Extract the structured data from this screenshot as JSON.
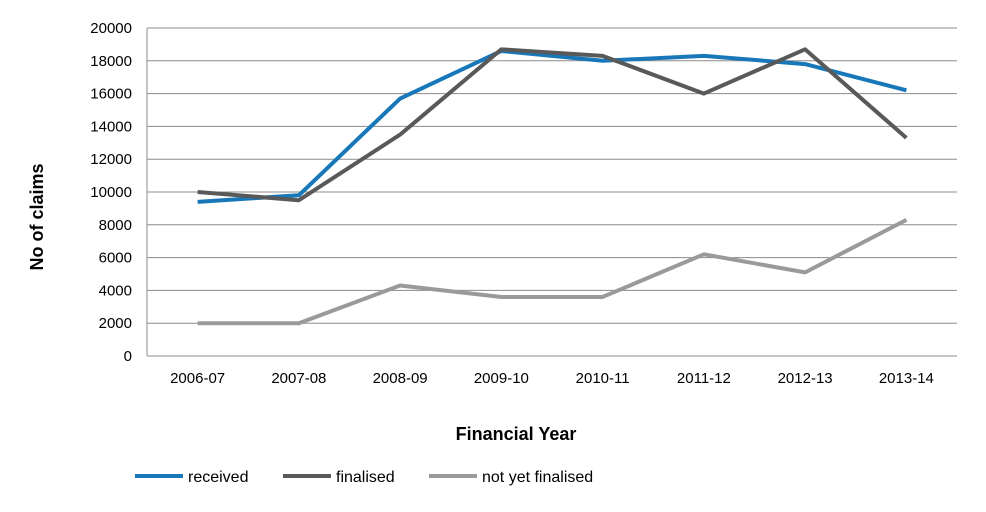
{
  "chart_data": {
    "type": "line",
    "title": "",
    "xlabel": "Financial Year",
    "ylabel": "No of claims",
    "categories": [
      "2006-07",
      "2007-08",
      "2008-09",
      "2009-10",
      "2010-11",
      "2011-12",
      "2012-13",
      "2013-14"
    ],
    "ylim": [
      0,
      20000
    ],
    "yticks": [
      0,
      2000,
      4000,
      6000,
      8000,
      10000,
      12000,
      14000,
      16000,
      18000,
      20000
    ],
    "grid": "horizontal",
    "legend_position": "bottom-left",
    "series": [
      {
        "name": "received",
        "color": "#1877b8",
        "values": [
          9400,
          9800,
          15700,
          18600,
          18000,
          18300,
          17800,
          16200
        ]
      },
      {
        "name": "finalised",
        "color": "#595959",
        "values": [
          10000,
          9500,
          13500,
          18700,
          18300,
          16000,
          18700,
          13300
        ]
      },
      {
        "name": "not yet finalised",
        "color": "#9a9a9a",
        "values": [
          2000,
          2000,
          4300,
          3600,
          3600,
          6200,
          5100,
          8300
        ]
      }
    ]
  }
}
